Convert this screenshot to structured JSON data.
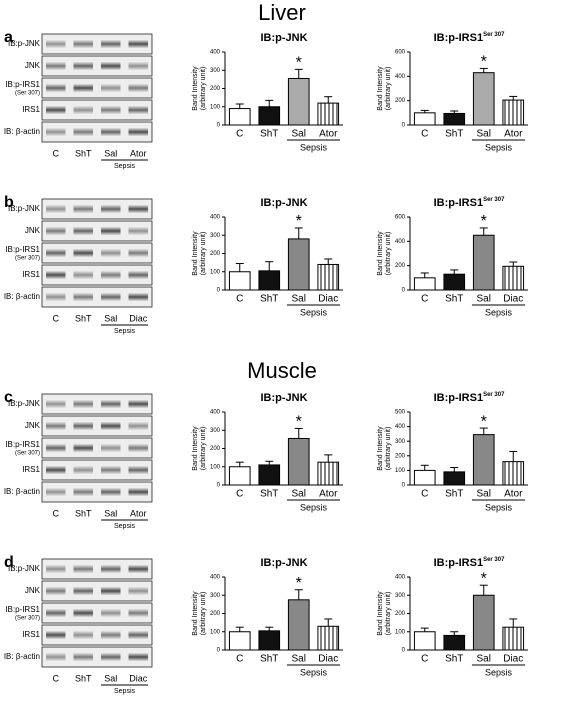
{
  "sections": [
    "Liver",
    "Muscle"
  ],
  "panels": [
    {
      "letter": "a",
      "rows": [
        {
          "label": "IB:p-JNK"
        },
        {
          "label": "JNK"
        },
        {
          "label": "IB:p-IRS1",
          "sub": "(Ser 307)"
        },
        {
          "label": "IRS1"
        },
        {
          "label": "IB: β-actin"
        }
      ],
      "lanes": [
        "C",
        "ShT",
        "Sal",
        "Ator"
      ],
      "group": "Sepsis"
    },
    {
      "letter": "b",
      "rows": [
        {
          "label": "IB:p-JNK"
        },
        {
          "label": "JNK"
        },
        {
          "label": "IB:p-IRS1",
          "sub": "(Ser 307)"
        },
        {
          "label": "IRS1"
        },
        {
          "label": "IB: β-actin"
        }
      ],
      "lanes": [
        "C",
        "ShT",
        "Sal",
        "Diac"
      ],
      "group": "Sepsis"
    },
    {
      "letter": "c",
      "rows": [
        {
          "label": "IB:p-JNK"
        },
        {
          "label": "JNK"
        },
        {
          "label": "IB:p-IRS1",
          "sub": "(Ser 307)"
        },
        {
          "label": "IRS1"
        },
        {
          "label": "IB: β-actin"
        }
      ],
      "lanes": [
        "C",
        "ShT",
        "Sal",
        "Ator"
      ],
      "group": "Sepsis"
    },
    {
      "letter": "d",
      "rows": [
        {
          "label": "IB:p-JNK"
        },
        {
          "label": "JNK"
        },
        {
          "label": "IB:p-IRS1",
          "sub": "(Ser 307)"
        },
        {
          "label": "IRS1"
        },
        {
          "label": "IB: β-actin"
        }
      ],
      "lanes": [
        "C",
        "ShT",
        "Sal",
        "Diac"
      ],
      "group": "Sepsis"
    }
  ],
  "chart_data": [
    {
      "type": "bar",
      "title": "IB:p-JNK",
      "ylabel": [
        "Band Intensity",
        "(arbitrary unit)"
      ],
      "categories": [
        "C",
        "ShT",
        "Sal",
        "Ator"
      ],
      "values": [
        90,
        100,
        255,
        120
      ],
      "errors": [
        25,
        35,
        50,
        35
      ],
      "colors": [
        "#ffffff",
        "#111111",
        "#aaaaaa",
        "hatch"
      ],
      "ylim": [
        0,
        400
      ],
      "yticks": [
        0,
        100,
        200,
        300,
        400
      ],
      "group": {
        "label": "Sepsis",
        "categories": [
          "Sal",
          "Ator"
        ]
      },
      "annotations": [
        {
          "text": "*",
          "category": "Sal"
        }
      ]
    },
    {
      "type": "bar",
      "title": "IB:p-IRS1",
      "title_sup": "Ser 307",
      "ylabel": [
        "Band Intensity",
        "(arbitrary unit)"
      ],
      "categories": [
        "C",
        "ShT",
        "Sal",
        "Ator"
      ],
      "values": [
        100,
        95,
        430,
        205
      ],
      "errors": [
        20,
        20,
        35,
        30
      ],
      "colors": [
        "#ffffff",
        "#111111",
        "#aaaaaa",
        "hatch"
      ],
      "ylim": [
        0,
        600
      ],
      "yticks": [
        0,
        200,
        400,
        600
      ],
      "group": {
        "label": "Sepsis",
        "categories": [
          "Sal",
          "Ator"
        ]
      },
      "annotations": [
        {
          "text": "*",
          "category": "Sal"
        }
      ]
    },
    {
      "type": "bar",
      "title": "IB:p-JNK",
      "ylabel": [
        "Band Intensity",
        "(arbitrary unit)"
      ],
      "categories": [
        "C",
        "ShT",
        "Sal",
        "Diac"
      ],
      "values": [
        100,
        105,
        280,
        140
      ],
      "errors": [
        45,
        50,
        60,
        30
      ],
      "colors": [
        "#ffffff",
        "#111111",
        "#888888",
        "hatch"
      ],
      "ylim": [
        0,
        400
      ],
      "yticks": [
        0,
        100,
        200,
        300,
        400
      ],
      "group": {
        "label": "Sepsis",
        "categories": [
          "Sal",
          "Diac"
        ]
      },
      "annotations": [
        {
          "text": "*",
          "category": "Sal"
        }
      ]
    },
    {
      "type": "bar",
      "title": "IB:p-IRS1",
      "title_sup": "Ser 307",
      "ylabel": [
        "Band Intensity",
        "(arbitrary unit)"
      ],
      "categories": [
        "C",
        "ShT",
        "Sal",
        "Diac"
      ],
      "values": [
        100,
        130,
        450,
        195
      ],
      "errors": [
        40,
        35,
        60,
        35
      ],
      "colors": [
        "#ffffff",
        "#111111",
        "#888888",
        "hatch"
      ],
      "ylim": [
        0,
        600
      ],
      "yticks": [
        0,
        200,
        400,
        600
      ],
      "group": {
        "label": "Sepsis",
        "categories": [
          "Sal",
          "Diac"
        ]
      },
      "annotations": [
        {
          "text": "*",
          "category": "Sal"
        }
      ]
    },
    {
      "type": "bar",
      "title": "IB:p-JNK",
      "ylabel": [
        "Band Intensity",
        "(arbitrary unit)"
      ],
      "categories": [
        "C",
        "ShT",
        "Sal",
        "Ator"
      ],
      "values": [
        100,
        110,
        255,
        125
      ],
      "errors": [
        25,
        20,
        55,
        40
      ],
      "colors": [
        "#ffffff",
        "#111111",
        "#888888",
        "hatch"
      ],
      "ylim": [
        0,
        400
      ],
      "yticks": [
        0,
        100,
        200,
        300,
        400
      ],
      "group": {
        "label": "Sepsis",
        "categories": [
          "Sal",
          "Ator"
        ]
      },
      "annotations": [
        {
          "text": "*",
          "category": "Sal"
        }
      ]
    },
    {
      "type": "bar",
      "title": "IB:p-IRS1",
      "title_sup": "Ser 307",
      "ylabel": [
        "Band Intensity",
        "(arbitrary unit)"
      ],
      "categories": [
        "C",
        "ShT",
        "Sal",
        "Ator"
      ],
      "values": [
        100,
        90,
        345,
        160
      ],
      "errors": [
        35,
        30,
        45,
        70
      ],
      "colors": [
        "#ffffff",
        "#111111",
        "#888888",
        "hatch"
      ],
      "ylim": [
        0,
        500
      ],
      "yticks": [
        0,
        100,
        200,
        300,
        400,
        500
      ],
      "group": {
        "label": "Sepsis",
        "categories": [
          "Sal",
          "Ator"
        ]
      },
      "annotations": [
        {
          "text": "*",
          "category": "Sal"
        }
      ]
    },
    {
      "type": "bar",
      "title": "IB:p-JNK",
      "ylabel": [
        "Band Intensity",
        "(arbitrary unit)"
      ],
      "categories": [
        "C",
        "ShT",
        "Sal",
        "Diac"
      ],
      "values": [
        100,
        105,
        275,
        130
      ],
      "errors": [
        25,
        20,
        55,
        40
      ],
      "colors": [
        "#ffffff",
        "#111111",
        "#888888",
        "hatch"
      ],
      "ylim": [
        0,
        400
      ],
      "yticks": [
        0,
        100,
        200,
        300,
        400
      ],
      "group": {
        "label": "Sepsis",
        "categories": [
          "Sal",
          "Diac"
        ]
      },
      "annotations": [
        {
          "text": "*",
          "category": "Sal"
        }
      ]
    },
    {
      "type": "bar",
      "title": "IB:p-IRS1",
      "title_sup": "Ser 307",
      "ylabel": [
        "Band Intensity",
        "(arbitrary unit)"
      ],
      "categories": [
        "C",
        "ShT",
        "Sal",
        "Diac"
      ],
      "values": [
        100,
        80,
        300,
        125
      ],
      "errors": [
        20,
        20,
        55,
        45
      ],
      "colors": [
        "#ffffff",
        "#111111",
        "#888888",
        "hatch"
      ],
      "ylim": [
        0,
        400
      ],
      "yticks": [
        0,
        100,
        200,
        300,
        400
      ],
      "group": {
        "label": "Sepsis",
        "categories": [
          "Sal",
          "Diac"
        ]
      },
      "annotations": [
        {
          "text": "*",
          "category": "Sal"
        }
      ]
    }
  ]
}
